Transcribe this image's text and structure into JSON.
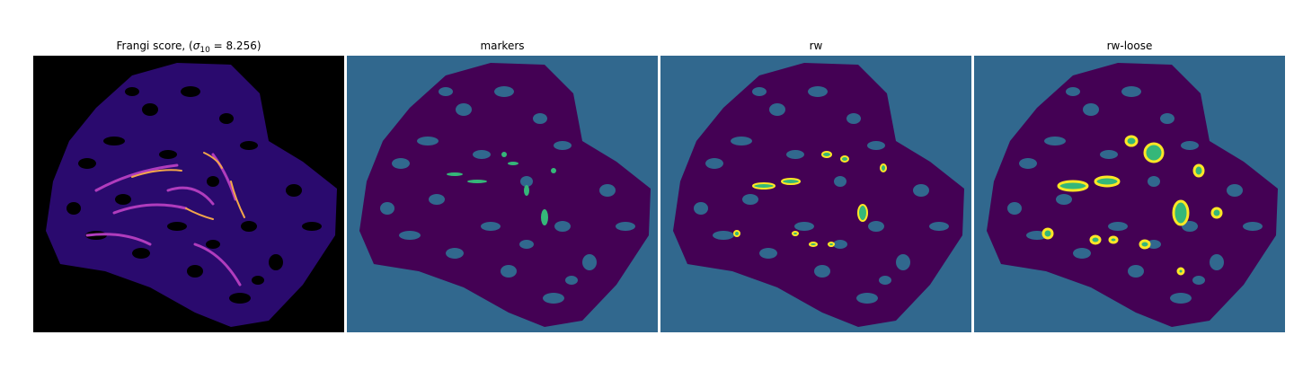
{
  "panels": [
    {
      "title_prefix": "Frangi score, (",
      "title_sigma": "σ",
      "title_sub": "10",
      "title_suffix": " = 8.256)"
    },
    {
      "title": "markers"
    },
    {
      "title": "rw"
    },
    {
      "title": "rw-loose"
    }
  ],
  "colors": {
    "frangi_bg": "#000000",
    "frangi_tissue": "#2a0a6e",
    "frangi_hot": "#f3a64a",
    "viridis_bg": "#31688e",
    "viridis_tissue": "#440154",
    "viridis_marker": "#35b779",
    "viridis_seg": "#fde725"
  }
}
